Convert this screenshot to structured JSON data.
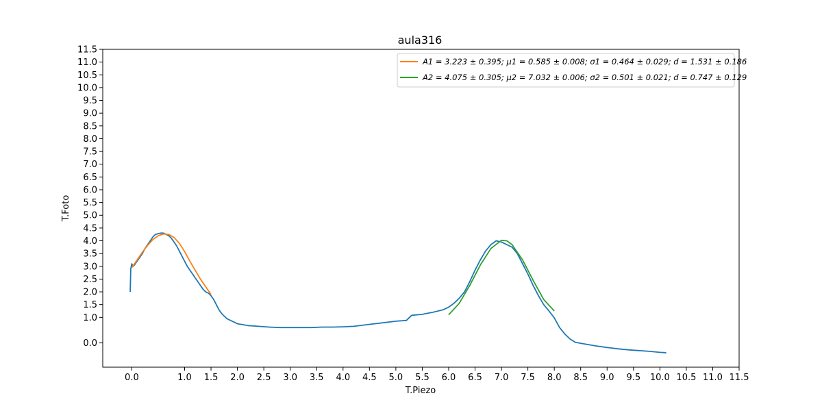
{
  "chart_data": {
    "type": "line",
    "title": "aula316",
    "xlabel": "T.Piezo",
    "ylabel": "T.Foto",
    "xlim": [
      -0.55,
      11.5
    ],
    "ylim": [
      -0.95,
      11.5
    ],
    "grid": false,
    "legend_position": "top-right",
    "x_ticks": [
      "0.0",
      "1.0",
      "1.5",
      "2.0",
      "2.5",
      "3.0",
      "3.5",
      "4.0",
      "4.5",
      "5.0",
      "5.5",
      "6.0",
      "6.5",
      "7.0",
      "7.5",
      "8.0",
      "8.5",
      "9.0",
      "9.5",
      "10.0",
      "10.5",
      "11.0",
      "11.5"
    ],
    "y_ticks": [
      "0.0",
      "1.0",
      "1.5",
      "2.0",
      "2.5",
      "3.0",
      "3.5",
      "4.0",
      "4.5",
      "5.0",
      "5.5",
      "6.0",
      "6.5",
      "7.0",
      "7.5",
      "8.0",
      "8.5",
      "9.0",
      "9.5",
      "10.0",
      "10.5",
      "11.0",
      "11.5"
    ],
    "series": [
      {
        "color": "#1f77b4",
        "x": [
          -0.03,
          -0.02,
          0.0,
          0.02,
          0.05,
          0.1,
          0.15,
          0.2,
          0.25,
          0.3,
          0.35,
          0.4,
          0.45,
          0.5,
          0.55,
          0.6,
          0.65,
          0.7,
          0.75,
          0.8,
          0.85,
          0.9,
          0.95,
          1.0,
          1.05,
          1.1,
          1.15,
          1.2,
          1.25,
          1.3,
          1.35,
          1.4,
          1.45,
          1.5,
          1.55,
          1.6,
          1.65,
          1.7,
          1.75,
          1.8,
          1.9,
          2.0,
          2.2,
          2.4,
          2.6,
          2.8,
          3.0,
          3.2,
          3.4,
          3.6,
          3.8,
          4.0,
          4.2,
          4.4,
          4.6,
          4.8,
          5.0,
          5.2,
          5.3,
          5.5,
          5.7,
          5.9,
          6.0,
          6.1,
          6.2,
          6.3,
          6.4,
          6.5,
          6.6,
          6.7,
          6.8,
          6.9,
          7.0,
          7.1,
          7.2,
          7.3,
          7.4,
          7.5,
          7.6,
          7.7,
          7.8,
          7.9,
          8.0,
          8.1,
          8.2,
          8.3,
          8.4,
          8.6,
          8.8,
          9.0,
          9.2,
          9.4,
          9.6,
          9.8,
          10.0,
          10.1,
          10.12
        ],
        "y": [
          2.0,
          2.9,
          3.1,
          3.0,
          3.05,
          3.2,
          3.35,
          3.5,
          3.7,
          3.85,
          4.0,
          4.15,
          4.25,
          4.28,
          4.3,
          4.3,
          4.25,
          4.2,
          4.1,
          3.95,
          3.8,
          3.6,
          3.4,
          3.2,
          3.0,
          2.85,
          2.7,
          2.55,
          2.4,
          2.25,
          2.1,
          2.0,
          1.95,
          1.85,
          1.7,
          1.5,
          1.3,
          1.15,
          1.05,
          0.95,
          0.85,
          0.75,
          0.68,
          0.65,
          0.62,
          0.6,
          0.6,
          0.6,
          0.6,
          0.62,
          0.62,
          0.63,
          0.65,
          0.7,
          0.75,
          0.8,
          0.85,
          0.88,
          1.08,
          1.12,
          1.2,
          1.3,
          1.4,
          1.55,
          1.75,
          2.0,
          2.4,
          2.85,
          3.25,
          3.6,
          3.85,
          4.0,
          3.95,
          3.85,
          3.75,
          3.5,
          3.1,
          2.7,
          2.25,
          1.85,
          1.5,
          1.25,
          0.98,
          0.6,
          0.35,
          0.15,
          0.02,
          -0.05,
          -0.12,
          -0.18,
          -0.23,
          -0.27,
          -0.3,
          -0.33,
          -0.37,
          -0.38,
          -0.4
        ]
      },
      {
        "name": "A1 = 3.223 ± 0.395; μ1 = 0.585 ± 0.008; σ1 = 0.464 ± 0.029; d = 1.531 ± 0.186",
        "color": "#ff7f0e",
        "x": [
          0.0,
          0.1,
          0.2,
          0.3,
          0.4,
          0.5,
          0.6,
          0.7,
          0.8,
          0.9,
          1.0,
          1.1,
          1.2,
          1.3,
          1.4,
          1.5
        ],
        "y": [
          2.95,
          3.25,
          3.55,
          3.82,
          4.05,
          4.2,
          4.27,
          4.25,
          4.13,
          3.9,
          3.58,
          3.2,
          2.85,
          2.5,
          2.2,
          1.9
        ]
      },
      {
        "name": "A2 = 4.075 ± 0.305; μ2 = 7.032 ± 0.006; σ2 = 0.501 ± 0.021; d = 0.747 ± 0.129",
        "color": "#2ca02c",
        "x": [
          6.0,
          6.2,
          6.4,
          6.6,
          6.8,
          7.0,
          7.1,
          7.2,
          7.4,
          7.6,
          7.8,
          8.0
        ],
        "y": [
          1.1,
          1.55,
          2.25,
          3.05,
          3.7,
          4.02,
          4.0,
          3.85,
          3.25,
          2.45,
          1.7,
          1.25
        ]
      }
    ]
  }
}
